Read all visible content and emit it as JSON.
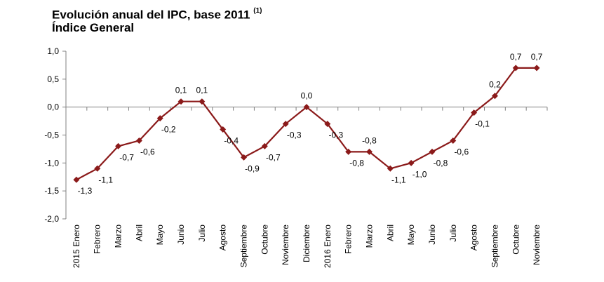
{
  "chart_data": {
    "type": "line",
    "title": "Evolución anual del IPC, base 2011",
    "title_note": "(1)",
    "subtitle": "Índice General",
    "categories": [
      "2015 Enero",
      "Febrero",
      "Marzo",
      "Abril",
      "Mayo",
      "Junio",
      "Julio",
      "Agosto",
      "Septiembre",
      "Octubre",
      "Noviembre",
      "Diciembre",
      "2016 Enero",
      "Febrero",
      "Marzo",
      "Abril",
      "Mayo",
      "Junio",
      "Julio",
      "Agosto",
      "Septiembre",
      "Octubre",
      "Noviembre"
    ],
    "values": [
      -1.3,
      -1.1,
      -0.7,
      -0.6,
      -0.2,
      0.1,
      0.1,
      -0.4,
      -0.9,
      -0.7,
      -0.3,
      0.0,
      -0.3,
      -0.8,
      -0.8,
      -1.1,
      -1.0,
      -0.8,
      -0.6,
      -0.1,
      0.2,
      0.7,
      0.7
    ],
    "data_labels": [
      "-1,3",
      "-1,1",
      "-0,7",
      "-0,6",
      "-0,2",
      "0,1",
      "0,1",
      "-0,4",
      "-0,9",
      "-0,7",
      "-0,3",
      "0,0",
      "-0,3",
      "-0,8",
      "-0,8",
      "-1,1",
      "-1,0",
      "-0,8",
      "-0,6",
      "-0,1",
      "0,2",
      "0,7",
      "0,7"
    ],
    "y_ticks": [
      1.0,
      0.5,
      0.0,
      -0.5,
      -1.0,
      -1.5,
      -2.0
    ],
    "y_tick_labels": [
      "1,0",
      "0,5",
      "0,0",
      "-0,5",
      "-1,0",
      "-1,5",
      "-2,0"
    ],
    "ylim": [
      -2.0,
      1.0
    ],
    "line_color": "#8b1a1a",
    "grid": false,
    "legend": "none"
  }
}
